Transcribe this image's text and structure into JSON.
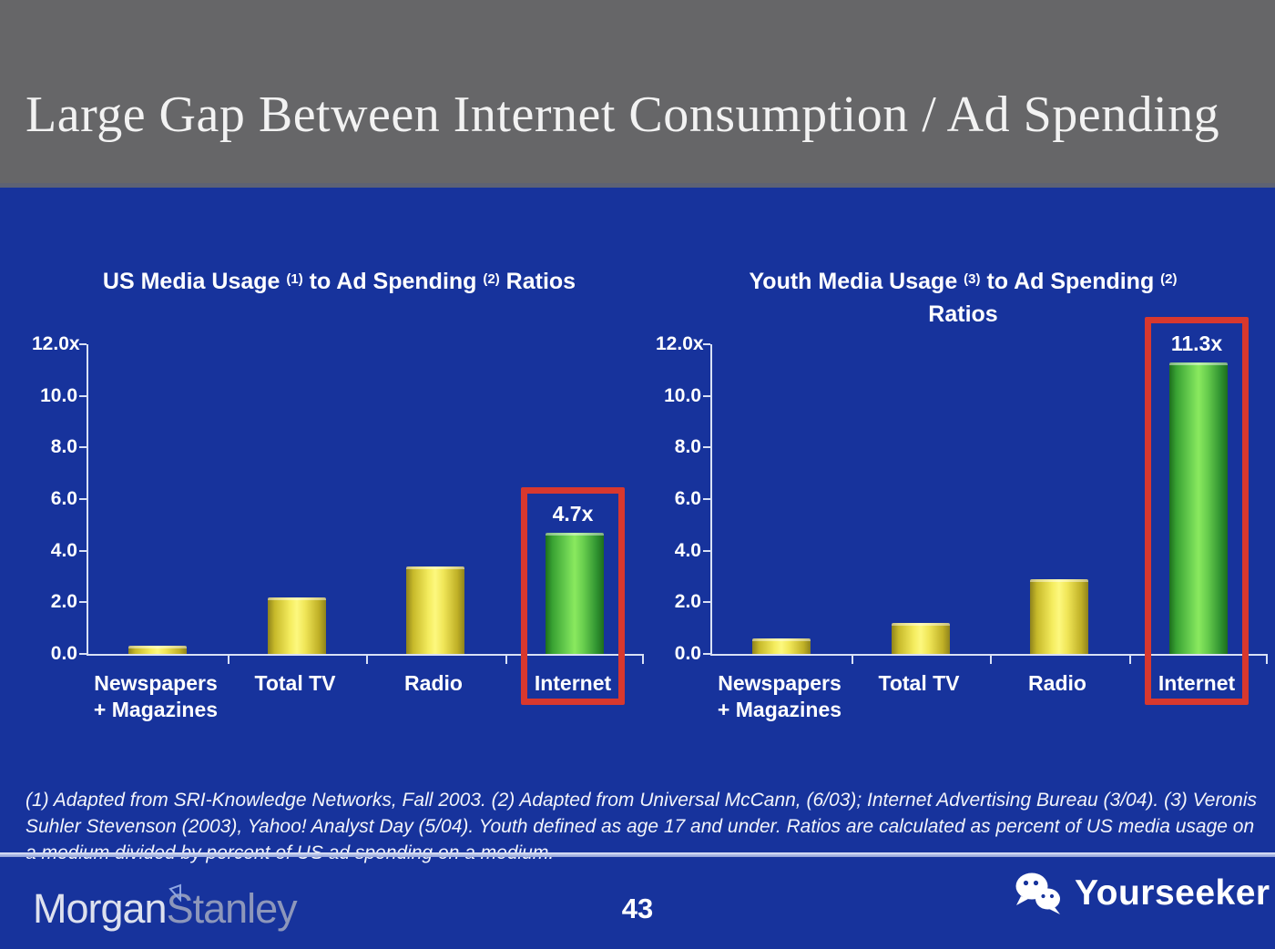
{
  "header": {
    "title": "Large Gap Between Internet Consumption / Ad Spending"
  },
  "chart_data": [
    {
      "type": "bar",
      "title": "US Media Usage (1) to Ad Spending (2) Ratios",
      "title_lines": [
        [
          {
            "t": "US Media Usage "
          },
          {
            "s": "(1)"
          },
          {
            "t": " to Ad Spending "
          },
          {
            "s": "(2)"
          },
          {
            "t": " Ratios"
          }
        ]
      ],
      "categories": [
        "Newspapers + Magazines",
        "Total TV",
        "Radio",
        "Internet"
      ],
      "category_labels": [
        [
          "Newspapers",
          "+ Magazines"
        ],
        [
          "Total TV"
        ],
        [
          "Radio"
        ],
        [
          "Internet"
        ]
      ],
      "values": [
        0.3,
        2.2,
        3.4,
        4.7
      ],
      "ylim": [
        0,
        12
      ],
      "ytick_labels": [
        "12.0x",
        "10.0",
        "8.0",
        "6.0",
        "4.0",
        "2.0",
        "0.0"
      ],
      "grid": false,
      "legend": "none",
      "highlight_index": 3,
      "highlight_value_label": "4.7x"
    },
    {
      "type": "bar",
      "title": "Youth Media Usage (3) to Ad Spending (2) Ratios",
      "title_lines": [
        [
          {
            "t": "Youth Media Usage "
          },
          {
            "s": "(3)"
          },
          {
            "t": " to Ad Spending "
          },
          {
            "s": "(2)"
          }
        ],
        [
          {
            "t": "Ratios"
          }
        ]
      ],
      "categories": [
        "Newspapers + Magazines",
        "Total TV",
        "Radio",
        "Internet"
      ],
      "category_labels": [
        [
          "Newspapers",
          "+ Magazines"
        ],
        [
          "Total TV"
        ],
        [
          "Radio"
        ],
        [
          "Internet"
        ]
      ],
      "values": [
        0.6,
        1.2,
        2.9,
        11.3
      ],
      "ylim": [
        0,
        12
      ],
      "ytick_labels": [
        "12.0x",
        "10.0",
        "8.0",
        "6.0",
        "4.0",
        "2.0",
        "0.0"
      ],
      "grid": false,
      "legend": "none",
      "highlight_index": 3,
      "highlight_value_label": "11.3x"
    }
  ],
  "footnote": "(1) Adapted from SRI-Knowledge Networks, Fall 2003.  (2) Adapted from Universal McCann, (6/03); Internet Advertising Bureau (3/04). (3) Veronis Suhler Stevenson (2003), Yahoo! Analyst Day (5/04).  Youth defined as age 17 and under.  Ratios are calculated as percent of US media usage on a medium divided by percent of US ad spending on a medium.",
  "footer": {
    "brand_left": {
      "part1": "Morgan",
      "part2": "Stanley"
    },
    "page_number": "43",
    "brand_right": "Yourseeker",
    "brand_right_icon": "wechat-icon"
  },
  "colors": {
    "background": "#17339C",
    "header_gray": "#666668",
    "highlight_red": "#D8382E",
    "bar_yellow": "#F4EC5E",
    "bar_yellow_edge": "#8F831C",
    "bar_green": "#6FD453",
    "bar_green_edge": "#1D6E1D",
    "axis": "#D9E1F5",
    "text": "#FFFFFF"
  }
}
